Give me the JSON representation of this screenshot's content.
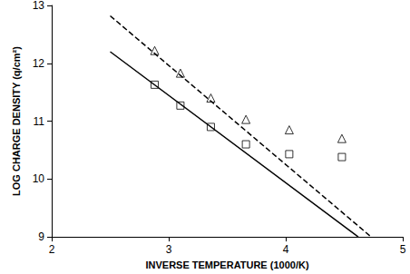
{
  "chart_data": {
    "type": "scatter",
    "x_label": "INVERSE TEMPERATURE (1000/K)",
    "y_label": "LOG CHARGE DENSITY (q/cm²)",
    "xlim": [
      2,
      5
    ],
    "xticks": [
      2,
      3,
      4,
      5
    ],
    "ylim": [
      9,
      13
    ],
    "yticks": [
      9,
      10,
      11,
      12,
      13
    ],
    "grid": false,
    "series": [
      {
        "type": "line",
        "line_style": "dashed",
        "color": "#000000",
        "x": [
          2.5,
          4.73
        ],
        "values": [
          12.82,
          9
        ]
      },
      {
        "type": "line",
        "line_style": "solid",
        "color": "#000000",
        "x": [
          2.5,
          4.62
        ],
        "values": [
          12.2,
          9
        ]
      },
      {
        "type": "scatter",
        "marker": "triangle",
        "color": "#000000",
        "x": [
          2.88,
          3.1,
          3.36,
          3.66,
          4.03,
          4.48
        ],
        "values": [
          12.22,
          11.83,
          11.4,
          11.03,
          10.85,
          10.7
        ]
      },
      {
        "type": "scatter",
        "marker": "square",
        "color": "#000000",
        "x": [
          2.88,
          3.1,
          3.36,
          3.66,
          4.03,
          4.48
        ],
        "values": [
          11.63,
          11.27,
          10.9,
          10.6,
          10.43,
          10.38
        ]
      }
    ]
  }
}
